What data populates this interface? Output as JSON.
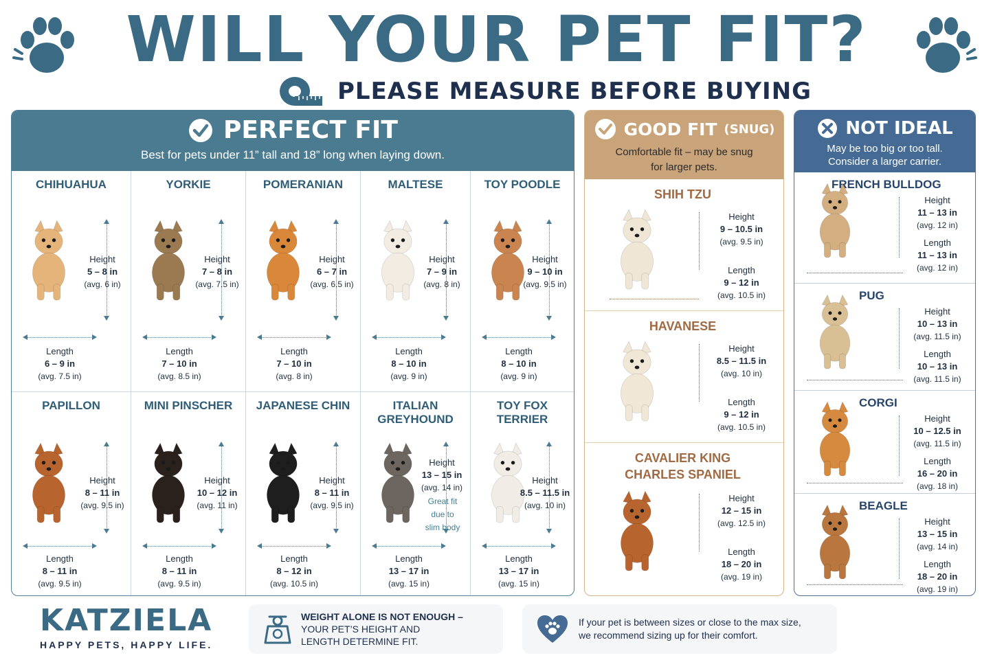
{
  "header": {
    "title": "WILL YOUR PET FIT?",
    "subtitle": "PLEASE MEASURE BEFORE BUYING"
  },
  "colors": {
    "perfect": "#4b7b91",
    "good": "#c9a47a",
    "not_ideal": "#456b94",
    "title": "#3a6a84"
  },
  "perfect_fit": {
    "title": "PERFECT FIT",
    "description": "Best for pets under 11” tall and 18” long when laying down.",
    "breeds": [
      {
        "name": "CHIHUAHUA",
        "height_label": "Height",
        "height": "5 – 8 in",
        "height_avg": "(avg. 6 in)",
        "length_label": "Length",
        "length": "6 – 9 in",
        "length_avg": "(avg. 7.5 in)",
        "color": "#e4b47a"
      },
      {
        "name": "YORKIE",
        "height_label": "Height",
        "height": "7 – 8 in",
        "height_avg": "(avg. 7.5 in)",
        "length_label": "Length",
        "length": "7 – 10 in",
        "length_avg": "(avg. 8.5 in)",
        "color": "#9b7a52"
      },
      {
        "name": "POMERANIAN",
        "height_label": "Height",
        "height": "6 – 7 in",
        "height_avg": "(avg. 6.5 in)",
        "length_label": "Length",
        "length": "7 – 10 in",
        "length_avg": "(avg. 8 in)",
        "color": "#d9883a"
      },
      {
        "name": "MALTESE",
        "height_label": "Height",
        "height": "7 – 9 in",
        "height_avg": "(avg. 8 in)",
        "length_label": "Length",
        "length": "8 – 10 in",
        "length_avg": "(avg. 9 in)",
        "color": "#f3ece2"
      },
      {
        "name": "TOY POODLE",
        "height_label": "Height",
        "height": "9 – 10 in",
        "height_avg": "(avg. 9.5 in)",
        "length_label": "Length",
        "length": "8 – 10 in",
        "length_avg": "(avg. 9 in)",
        "color": "#c98450"
      },
      {
        "name": "PAPILLON",
        "height_label": "Height",
        "height": "8 – 11 in",
        "height_avg": "(avg. 9.5 in)",
        "length_label": "Length",
        "length": "8 – 11 in",
        "length_avg": "(avg. 9.5 in)",
        "color": "#b8642e"
      },
      {
        "name": "MINI PINSCHER",
        "height_label": "Height",
        "height": "10 – 12 in",
        "height_avg": "(avg. 11 in)",
        "length_label": "Length",
        "length": "8 – 11 in",
        "length_avg": "(avg. 9.5 in)",
        "color": "#2a211c"
      },
      {
        "name": "JAPANESE CHIN",
        "height_label": "Height",
        "height": "8 – 11 in",
        "height_avg": "(avg. 9.5 in)",
        "length_label": "Length",
        "length": "8 – 12 in",
        "length_avg": "(avg. 10.5 in)",
        "color": "#1e1e1e"
      },
      {
        "name": "ITALIAN GREYHOUND",
        "height_label": "Height",
        "height": "13 – 15 in",
        "height_avg": "(avg. 14 in)",
        "note": [
          "Great fit",
          "due to",
          "slim body"
        ],
        "length_label": "Length",
        "length": "13 – 17 in",
        "length_avg": "(avg. 15 in)",
        "color": "#6d6660"
      },
      {
        "name": "TOY FOX TERRIER",
        "height_label": "Height",
        "height": "8.5 – 11.5 in",
        "height_avg": "(avg. 10 in)",
        "length_label": "Length",
        "length": "13 – 17 in",
        "length_avg": "(avg.  15  in)",
        "color": "#f1ede6"
      }
    ]
  },
  "good_fit": {
    "title": "GOOD FIT",
    "title_suffix": "(SNUG)",
    "description_1": "Comfortable fit – may be snug",
    "description_2": "for larger pets.",
    "breeds": [
      {
        "name_lines": [
          "SHIH TZU"
        ],
        "height_label": "Height",
        "height": "9 – 10.5 in",
        "height_avg": "(avg. 9.5 in)",
        "length_label": "Length",
        "length": "9 – 12 in",
        "length_avg": "(avg. 10.5 in)",
        "color": "#efe6d6"
      },
      {
        "name_lines": [
          "HAVANESE"
        ],
        "height_label": "Height",
        "height": "8.5 – 11.5 in",
        "height_avg": "(avg. 10 in)",
        "length_label": "Length",
        "length": "9 – 12 in",
        "length_avg": "(avg. 10.5 in)",
        "color": "#f1e7d6"
      },
      {
        "name_lines": [
          "CAVALIER KING",
          "CHARLES SPANIEL"
        ],
        "height_label": "Height",
        "height": "12 – 15 in",
        "height_avg": "(avg. 12.5 in)",
        "length_label": "Length",
        "length": "18 – 20 in",
        "length_avg": "(avg. 19 in)",
        "color": "#b8642e"
      }
    ]
  },
  "not_ideal": {
    "title": "NOT IDEAL",
    "description_1": "May be too big or too tall.",
    "description_2": "Consider a larger carrier.",
    "breeds": [
      {
        "name": "FRENCH BULLDOG",
        "height_label": "Height",
        "height": "11 – 13 in",
        "height_avg": "(avg. 12 in)",
        "length_label": "Length",
        "length": "11 – 13 in",
        "length_avg": "(avg. 12 in)",
        "color": "#d3ae80"
      },
      {
        "name": "PUG",
        "height_label": "Height",
        "height": "10 – 13 in",
        "height_avg": "(avg. 11.5 in)",
        "length_label": "Length",
        "length": "10 – 13 in",
        "length_avg": "(avg. 11.5 in)",
        "color": "#d9bf94"
      },
      {
        "name": "CORGI",
        "height_label": "Height",
        "height": "10 – 12.5 in",
        "height_avg": "(avg. 11.5 in)",
        "length_label": "Length",
        "length": "16 – 20 in",
        "length_avg": "(avg. 18 in)",
        "color": "#d58a3f"
      },
      {
        "name": "BEAGLE",
        "height_label": "Height",
        "height": "13 – 15 in",
        "height_avg": "(avg. 14 in)",
        "length_label": "Length",
        "length": "18 – 20 in",
        "length_avg": "(avg. 19 in)",
        "color": "#b9773f"
      }
    ]
  },
  "footer": {
    "brand": "KATZIELA",
    "tagline": "HAPPY PETS, HAPPY LIFE.",
    "tip_weight_bold": "WEIGHT ALONE IS NOT ENOUGH –",
    "tip_weight_1": "YOUR PET’S HEIGHT AND",
    "tip_weight_2": "LENGTH DETERMINE FIT.",
    "tip_size_1": "If your pet is between sizes or close to the max size,",
    "tip_size_2": "we recommend sizing up for their comfort."
  }
}
